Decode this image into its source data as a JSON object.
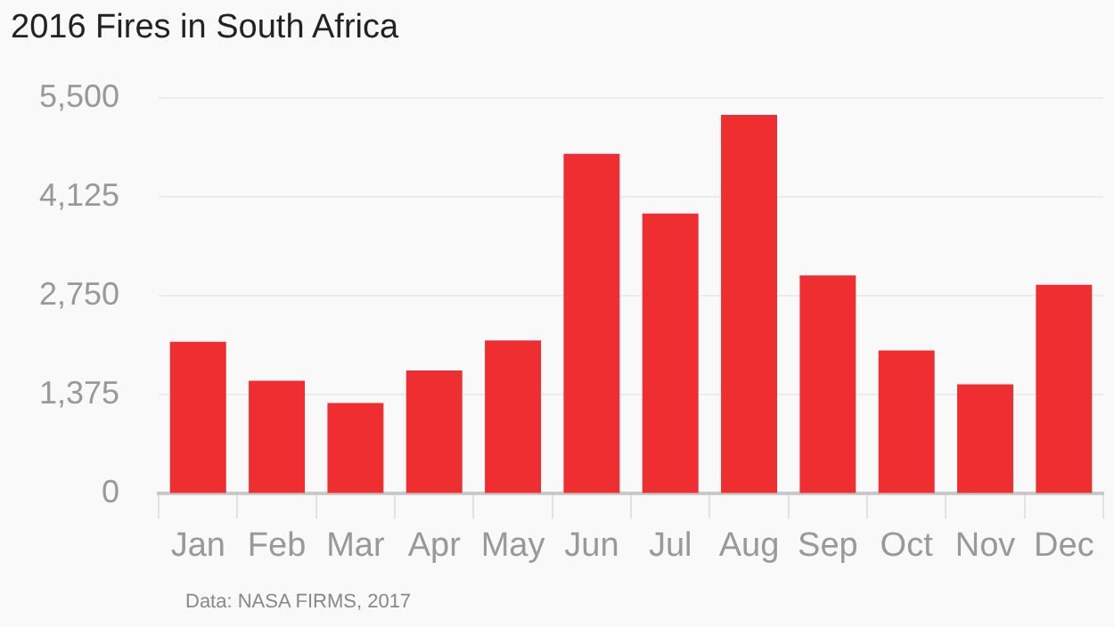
{
  "chart_data": {
    "type": "bar",
    "title": "2016 Fires in South Africa",
    "categories": [
      "Jan",
      "Feb",
      "Mar",
      "Apr",
      "May",
      "Jun",
      "Jul",
      "Aug",
      "Sep",
      "Oct",
      "Nov",
      "Dec"
    ],
    "values": [
      2110,
      1570,
      1260,
      1710,
      2130,
      4720,
      3890,
      5260,
      3030,
      1990,
      1520,
      2900
    ],
    "color": "#ee2e31",
    "ylim": [
      0,
      5500
    ],
    "yticks": [
      0,
      {
        "value": 1375,
        "label": "1,375"
      },
      {
        "value": 2750,
        "label": "2,750"
      },
      {
        "value": 4125,
        "label": "4,125"
      },
      {
        "value": 5500,
        "label": "5,500"
      }
    ],
    "grid": "y",
    "legend": false,
    "annotations": [
      "Data: NASA FIRMS, 2017"
    ]
  }
}
